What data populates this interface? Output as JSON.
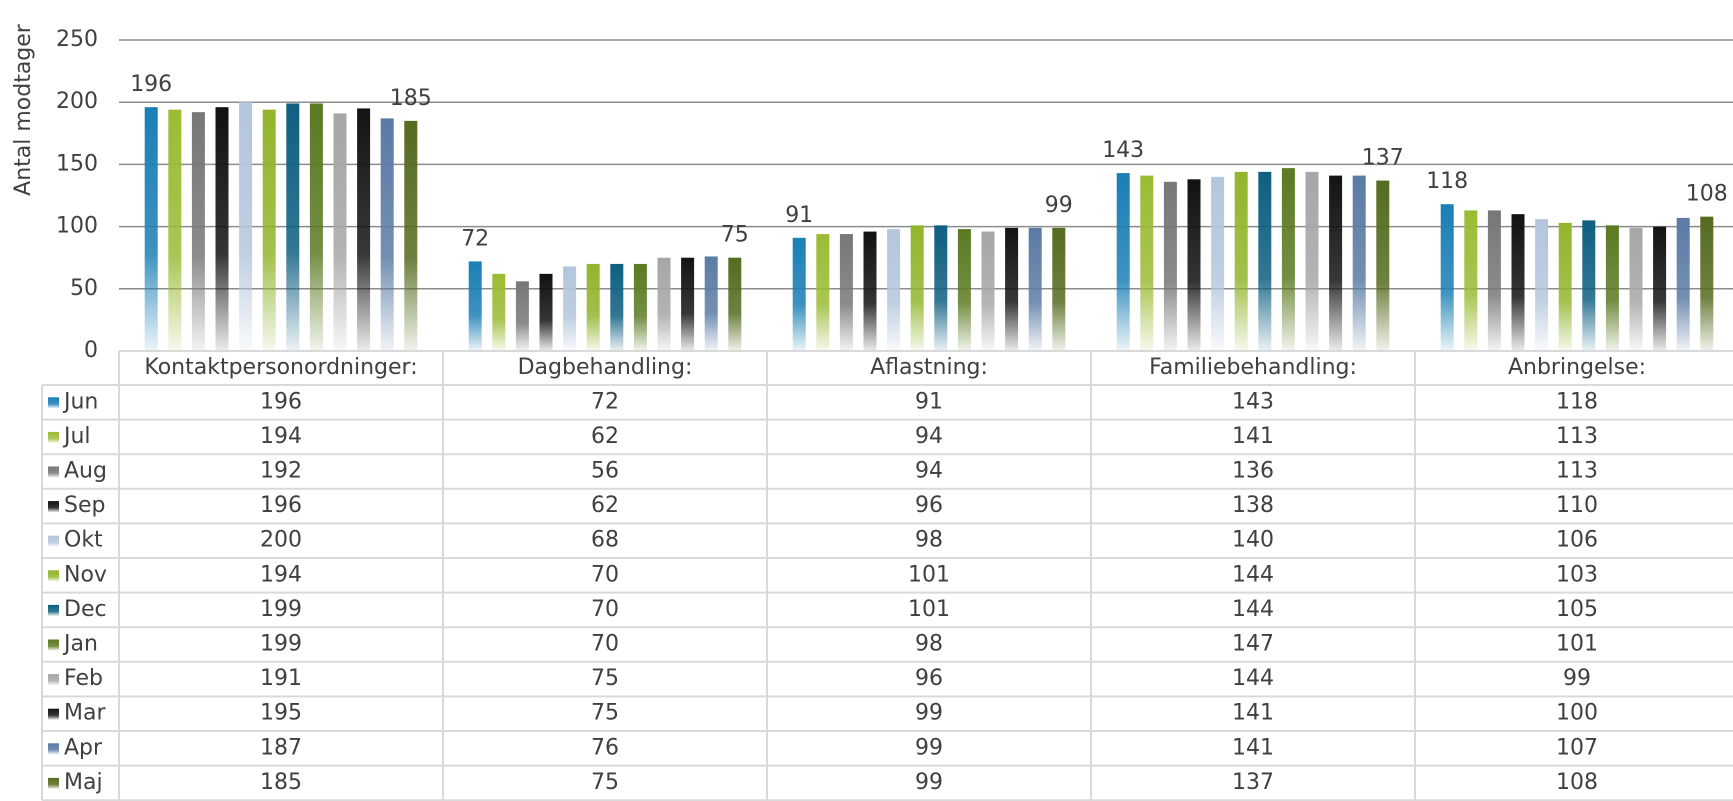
{
  "chart_data": {
    "type": "bar",
    "y_label": "Antal modtager",
    "categories": [
      "Kontaktpersonordninger:",
      "Dagbehandling:",
      "Aflastning:",
      "Familiebehandling:",
      "Anbringelse:"
    ],
    "series": [
      {
        "name": "Jun",
        "color": "#1a7fb5",
        "show_labels": true,
        "values": [
          196,
          72,
          91,
          143,
          118
        ]
      },
      {
        "name": "Jul",
        "color": "#9bbb34",
        "values": [
          194,
          62,
          94,
          141,
          113
        ]
      },
      {
        "name": "Aug",
        "color": "#777777",
        "values": [
          192,
          56,
          94,
          136,
          113
        ]
      },
      {
        "name": "Sep",
        "color": "#111111",
        "values": [
          196,
          62,
          96,
          138,
          110
        ]
      },
      {
        "name": "Okt",
        "color": "#b4c6dc",
        "values": [
          200,
          68,
          98,
          140,
          106
        ]
      },
      {
        "name": "Nov",
        "color": "#92b52c",
        "values": [
          194,
          70,
          101,
          144,
          103
        ]
      },
      {
        "name": "Dec",
        "color": "#0e5f80",
        "values": [
          199,
          70,
          101,
          144,
          105
        ]
      },
      {
        "name": "Jan",
        "color": "#5b7a22",
        "values": [
          199,
          70,
          98,
          147,
          101
        ]
      },
      {
        "name": "Feb",
        "color": "#a6a6a6",
        "values": [
          191,
          75,
          96,
          144,
          99
        ]
      },
      {
        "name": "Mar",
        "color": "#141414",
        "values": [
          195,
          75,
          99,
          141,
          100
        ]
      },
      {
        "name": "Apr",
        "color": "#5b7ba5",
        "values": [
          187,
          76,
          99,
          141,
          107
        ]
      },
      {
        "name": "Maj",
        "color": "#556b1f",
        "show_labels": true,
        "values": [
          185,
          75,
          99,
          137,
          108
        ]
      }
    ],
    "ylim": [
      0,
      250
    ],
    "yticks": [
      0,
      50,
      100,
      150,
      200,
      250
    ],
    "grid": true
  }
}
